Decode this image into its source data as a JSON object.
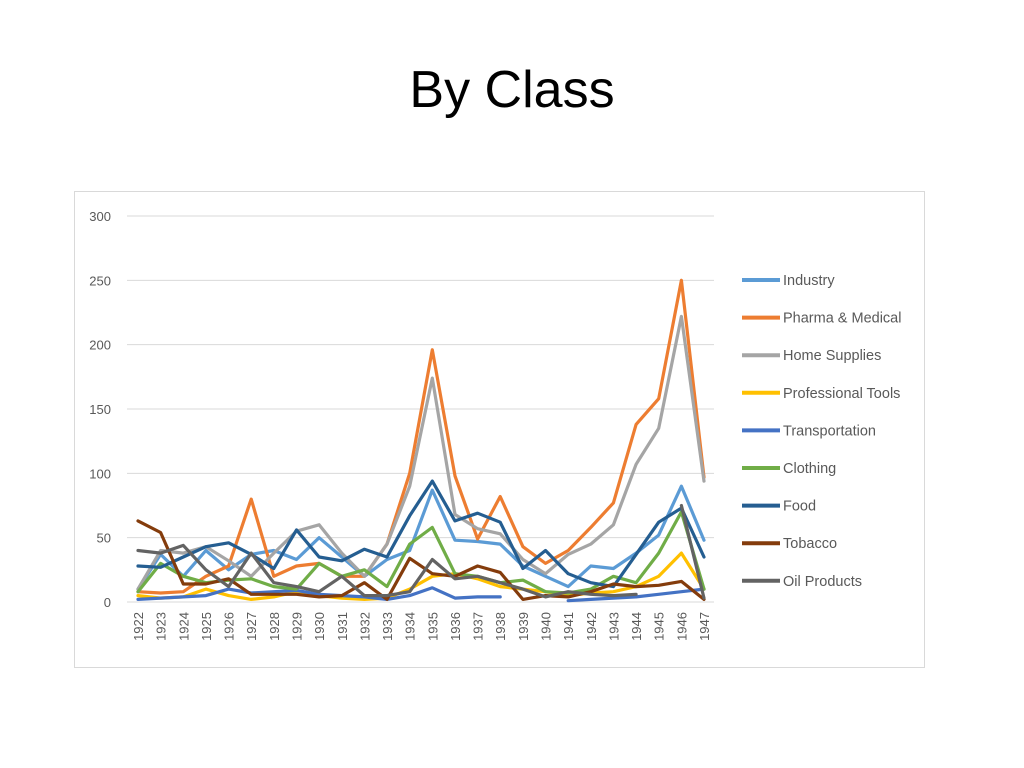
{
  "slide": {
    "title": "By Class"
  },
  "chart_data": {
    "type": "line",
    "title": "",
    "xlabel": "",
    "ylabel": "",
    "ylim": [
      0,
      300
    ],
    "yticks": [
      0,
      50,
      100,
      150,
      200,
      250,
      300
    ],
    "grid": true,
    "legend_position": "right",
    "categories": [
      "1922",
      "1923",
      "1924",
      "1925",
      "1926",
      "1927",
      "1928",
      "1929",
      "1930",
      "1931",
      "1932",
      "1933",
      "1934",
      "1935",
      "1936",
      "1937",
      "1938",
      "1939",
      "1940",
      "1941",
      "1942",
      "1943",
      "1944",
      "1945",
      "1946",
      "1947"
    ],
    "series": [
      {
        "name": "Industry",
        "color": "#5B9BD5",
        "values": [
          10,
          37,
          20,
          40,
          25,
          37,
          40,
          33,
          50,
          35,
          20,
          33,
          40,
          87,
          48,
          47,
          45,
          28,
          20,
          12,
          28,
          26,
          38,
          52,
          90,
          48
        ]
      },
      {
        "name": "Pharma & Medical",
        "color": "#ED7D31",
        "values": [
          8,
          7,
          8,
          20,
          28,
          80,
          20,
          28,
          30,
          20,
          20,
          45,
          100,
          196,
          98,
          49,
          82,
          43,
          30,
          40,
          58,
          77,
          138,
          158,
          250,
          97
        ]
      },
      {
        "name": "Home Supplies",
        "color": "#A5A5A5",
        "values": [
          10,
          40,
          38,
          43,
          32,
          20,
          38,
          55,
          60,
          38,
          20,
          45,
          90,
          174,
          68,
          57,
          53,
          33,
          22,
          37,
          45,
          60,
          107,
          135,
          222,
          94
        ]
      },
      {
        "name": "Professional Tools",
        "color": "#FFC000",
        "values": [
          5,
          3,
          4,
          10,
          5,
          2,
          4,
          8,
          5,
          3,
          2,
          3,
          10,
          20,
          22,
          18,
          12,
          10,
          8,
          5,
          7,
          8,
          12,
          20,
          38,
          10
        ]
      },
      {
        "name": "Transportation",
        "color": "#4472C4",
        "values": [
          2,
          3,
          4,
          5,
          10,
          7,
          8,
          9,
          6,
          5,
          4,
          2,
          5,
          11,
          3,
          4,
          4,
          null,
          null,
          1,
          2,
          3,
          4,
          6,
          8,
          10
        ]
      },
      {
        "name": "Clothing",
        "color": "#70AD47",
        "values": [
          8,
          30,
          20,
          15,
          17,
          18,
          12,
          10,
          30,
          20,
          25,
          12,
          45,
          58,
          22,
          20,
          15,
          17,
          8,
          7,
          10,
          20,
          15,
          38,
          70,
          10
        ]
      },
      {
        "name": "Food",
        "color": "#255E91",
        "values": [
          28,
          27,
          35,
          43,
          46,
          37,
          26,
          56,
          35,
          32,
          41,
          35,
          67,
          94,
          63,
          69,
          62,
          26,
          40,
          22,
          15,
          12,
          37,
          62,
          73,
          35
        ]
      },
      {
        "name": "Tobacco",
        "color": "#843C0C",
        "values": [
          63,
          54,
          14,
          14,
          18,
          6,
          6,
          6,
          4,
          5,
          15,
          2,
          34,
          22,
          20,
          28,
          23,
          2,
          5,
          4,
          8,
          14,
          12,
          13,
          16,
          2
        ]
      },
      {
        "name": "Oil Products",
        "color": "#636363",
        "values": [
          40,
          38,
          44,
          25,
          12,
          38,
          15,
          12,
          8,
          20,
          5,
          5,
          8,
          33,
          18,
          20,
          15,
          10,
          4,
          8,
          6,
          5,
          6,
          null,
          75,
          3
        ]
      }
    ]
  }
}
